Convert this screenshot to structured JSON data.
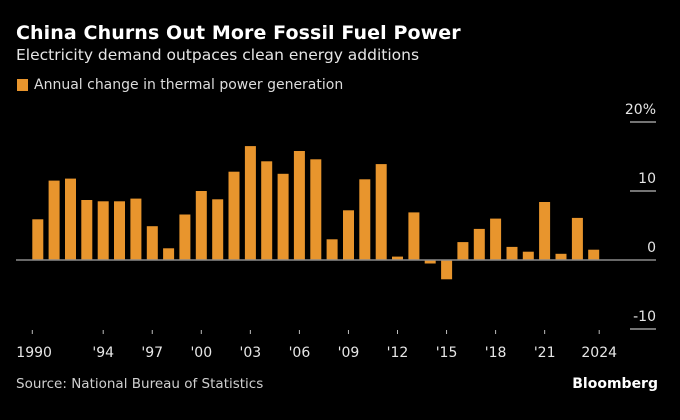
{
  "header": {
    "title": "China Churns Out More Fossil Fuel Power",
    "subtitle": "Electricity demand outpaces clean energy additions"
  },
  "legend": {
    "label": "Annual change in thermal power generation",
    "color": "#E8952D"
  },
  "footer": {
    "source": "Source: National Bureau of Statistics",
    "brand": "Bloomberg"
  },
  "chart_data": {
    "type": "bar",
    "title": "China Churns Out More Fossil Fuel Power",
    "subtitle": "Electricity demand outpaces clean energy additions",
    "xlabel": "",
    "ylabel": "",
    "legend": [
      "Annual change in thermal power generation"
    ],
    "legend_position": "top-left",
    "bar_color": "#E8952D",
    "ylim": [
      -10,
      20
    ],
    "yticks": [
      {
        "value": 20,
        "label": "20%"
      },
      {
        "value": 10,
        "label": "10"
      },
      {
        "value": 0,
        "label": "0"
      },
      {
        "value": -10,
        "label": "-10"
      }
    ],
    "y_axis_position": "right",
    "grid": false,
    "categories": [
      1990,
      1991,
      1992,
      1993,
      1994,
      1995,
      1996,
      1997,
      1998,
      1999,
      2000,
      2001,
      2002,
      2003,
      2004,
      2005,
      2006,
      2007,
      2008,
      2009,
      2010,
      2011,
      2012,
      2013,
      2014,
      2015,
      2016,
      2017,
      2018,
      2019,
      2020,
      2021,
      2022,
      2023,
      2024
    ],
    "xticks": [
      {
        "year": 1990,
        "label": "1990"
      },
      {
        "year": 1994,
        "label": "'94"
      },
      {
        "year": 1997,
        "label": "'97"
      },
      {
        "year": 2000,
        "label": "'00"
      },
      {
        "year": 2003,
        "label": "'03"
      },
      {
        "year": 2006,
        "label": "'06"
      },
      {
        "year": 2009,
        "label": "'09"
      },
      {
        "year": 2012,
        "label": "'12"
      },
      {
        "year": 2015,
        "label": "'15"
      },
      {
        "year": 2018,
        "label": "'18"
      },
      {
        "year": 2021,
        "label": "'21"
      },
      {
        "year": 2024,
        "label": "2024"
      }
    ],
    "series": [
      {
        "name": "Annual change in thermal power generation",
        "unit": "%",
        "values": [
          5.9,
          11.5,
          11.8,
          8.7,
          8.5,
          8.5,
          8.9,
          4.9,
          1.7,
          6.6,
          10.0,
          8.8,
          12.8,
          16.5,
          14.3,
          12.5,
          15.8,
          14.6,
          3.0,
          7.2,
          11.7,
          13.9,
          0.5,
          6.9,
          -0.5,
          -2.8,
          2.6,
          4.5,
          6.0,
          1.9,
          1.2,
          8.4,
          0.9,
          6.1,
          1.5
        ]
      }
    ]
  }
}
